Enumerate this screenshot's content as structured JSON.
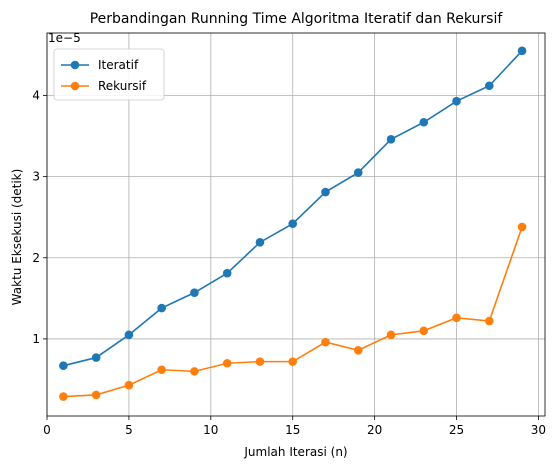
{
  "chart_data": {
    "type": "line",
    "title": "Perbandingan Running Time Algoritma Iteratif dan Rekursif",
    "xlabel": "Jumlah Iterasi (n)",
    "ylabel": "Waktu Eksekusi (detik)",
    "y_offset_label": "1e−5",
    "x": [
      1,
      3,
      5,
      7,
      9,
      11,
      13,
      15,
      17,
      19,
      21,
      23,
      25,
      27,
      29
    ],
    "xlim": [
      0,
      30.4
    ],
    "ylim": [
      0.05,
      4.77
    ],
    "y_scale_note": "values in units of 1e-5 seconds",
    "xticks": [
      0,
      5,
      10,
      15,
      20,
      25,
      30
    ],
    "yticks": [
      1,
      2,
      3,
      4
    ],
    "grid": true,
    "legend_position": "top-left",
    "series": [
      {
        "name": "Iteratif",
        "color": "#1f77b4",
        "values": [
          0.67,
          0.77,
          1.05,
          1.38,
          1.57,
          1.81,
          2.19,
          2.42,
          2.81,
          3.05,
          3.46,
          3.67,
          3.93,
          4.12,
          4.55
        ]
      },
      {
        "name": "Rekursif",
        "color": "#ff7f0e",
        "values": [
          0.29,
          0.31,
          0.43,
          0.62,
          0.6,
          0.7,
          0.72,
          0.72,
          0.96,
          0.86,
          1.05,
          1.1,
          1.26,
          1.22,
          2.38
        ]
      }
    ]
  }
}
